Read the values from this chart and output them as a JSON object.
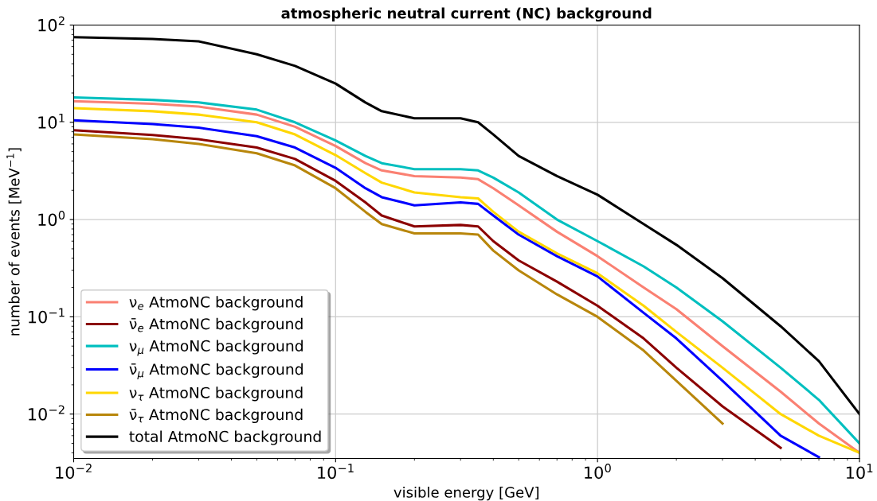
{
  "chart_data": {
    "type": "line",
    "title": "atmospheric neutral current (NC) background",
    "xlabel": "visible energy [GeV]",
    "ylabel": "number of events [MeV$^{−1}$]",
    "log": "xy",
    "grid": true,
    "legend": "bottom left",
    "line_style": "solid",
    "marker": "none",
    "xlim": [
      0.01,
      10
    ],
    "ylim": [
      0.0035,
      100
    ],
    "xticks": [
      {
        "value": 0.01,
        "label": "10$^{−2}$"
      },
      {
        "value": 0.1,
        "label": "10$^{−1}$"
      },
      {
        "value": 1,
        "label": "10$^{0}$"
      },
      {
        "value": 10,
        "label": "10$^{1}$"
      }
    ],
    "yticks": [
      {
        "value": 0.01,
        "label": "10$^{−2}$"
      },
      {
        "value": 0.1,
        "label": "10$^{−1}$"
      },
      {
        "value": 1,
        "label": "10$^{0}$"
      },
      {
        "value": 10,
        "label": "10$^{1}$"
      },
      {
        "value": 100,
        "label": "10$^{2}$"
      }
    ],
    "x": [
      0.01,
      0.02,
      0.03,
      0.05,
      0.07,
      0.1,
      0.13,
      0.15,
      0.2,
      0.3,
      0.35,
      0.4,
      0.5,
      0.7,
      1,
      1.5,
      2,
      3,
      5,
      7,
      10
    ],
    "series": [
      {
        "name": "ν$_{e}$ AtmoNC background",
        "color": "#fa8072",
        "values": [
          16.5,
          15.5,
          14.5,
          12,
          9,
          5.7,
          3.8,
          3.2,
          2.8,
          2.7,
          2.6,
          2.1,
          1.4,
          0.75,
          0.42,
          0.2,
          0.12,
          0.05,
          0.017,
          0.008,
          0.004
        ]
      },
      {
        "name": "ν̄$_{e}$ AtmoNC background",
        "color": "#8b0000",
        "values": [
          8.3,
          7.4,
          6.7,
          5.5,
          4.2,
          2.5,
          1.5,
          1.1,
          0.85,
          0.88,
          0.85,
          0.6,
          0.38,
          0.23,
          0.13,
          0.06,
          0.03,
          0.012,
          0.0045,
          null,
          null
        ]
      },
      {
        "name": "ν$_{μ}$ AtmoNC background",
        "color": "#00bfbf",
        "values": [
          18,
          17,
          16,
          13.5,
          10,
          6.5,
          4.5,
          3.8,
          3.3,
          3.3,
          3.2,
          2.7,
          1.9,
          1.0,
          0.6,
          0.33,
          0.2,
          0.09,
          0.03,
          0.014,
          0.005
        ]
      },
      {
        "name": "ν̄$_{μ}$ AtmoNC background",
        "color": "#0000ff",
        "values": [
          10.5,
          9.6,
          8.8,
          7.2,
          5.5,
          3.4,
          2.1,
          1.7,
          1.4,
          1.5,
          1.45,
          1.1,
          0.7,
          0.42,
          0.26,
          0.11,
          0.06,
          0.022,
          0.006,
          0.0036,
          null
        ]
      },
      {
        "name": "ν$_{τ}$ AtmoNC background",
        "color": "#ffd700",
        "values": [
          14,
          13,
          12,
          10,
          7.5,
          4.6,
          3.0,
          2.4,
          1.9,
          1.7,
          1.65,
          1.2,
          0.75,
          0.45,
          0.28,
          0.13,
          0.07,
          0.03,
          0.01,
          0.006,
          0.004
        ]
      },
      {
        "name": "ν̄$_{τ}$ AtmoNC background",
        "color": "#b8860b",
        "values": [
          7.5,
          6.7,
          6.0,
          4.8,
          3.6,
          2.1,
          1.2,
          0.9,
          0.72,
          0.72,
          0.7,
          0.48,
          0.3,
          0.17,
          0.1,
          0.045,
          0.022,
          0.008,
          null,
          null,
          null
        ]
      },
      {
        "name": "total AtmoNC background",
        "color": "#000000",
        "values": [
          75,
          72,
          68,
          50,
          38,
          25,
          16,
          13,
          11,
          11,
          10,
          7.5,
          4.5,
          2.8,
          1.8,
          0.9,
          0.55,
          0.25,
          0.08,
          0.035,
          0.01
        ]
      }
    ]
  }
}
